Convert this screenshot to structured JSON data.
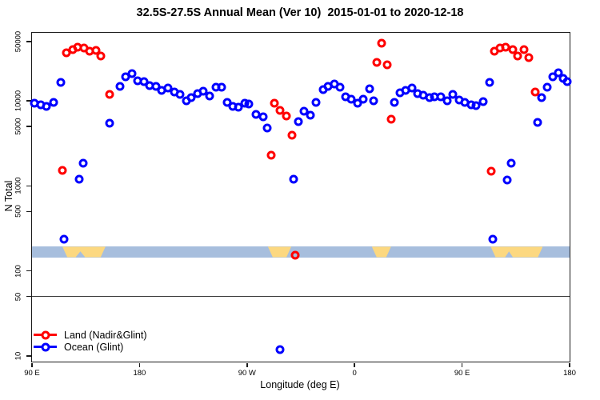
{
  "chart_data": {
    "type": "scatter",
    "title": "32.5S-27.5S Annual Mean (Ver 10)  2015-01-01 to 2020-12-18",
    "xlabel": "Longitude (deg E)",
    "ylabel": "N Total",
    "x_axis": {
      "range_deg": [
        0,
        450
      ],
      "tick_positions_deg": [
        0,
        90,
        180,
        270,
        360,
        450
      ],
      "tick_labels": [
        "90 E",
        "180",
        "90 W",
        "0",
        "90 E",
        "180"
      ]
    },
    "y_axis": {
      "scale": "log10",
      "range": [
        8.6,
        63000
      ],
      "tick_values": [
        10,
        50,
        100,
        500,
        1000,
        5000,
        10000,
        50000
      ],
      "tick_labels": [
        "10",
        "50",
        "100",
        "500",
        "1000",
        "5000",
        "10000",
        "50000"
      ]
    },
    "reference_line_value": 50,
    "band": {
      "value_range": [
        145,
        193
      ],
      "ocean_color": "#a7bedd",
      "land_color": "#fcd880",
      "land_patches_deg": [
        [
          25.5,
          61.5
        ],
        [
          197.5,
          217.0
        ],
        [
          284.5,
          300.5
        ],
        [
          384.0,
          427.5
        ]
      ],
      "ocean_notches_deg": [
        [
          36.5,
          44.5
        ],
        [
          396.0,
          402.5
        ]
      ]
    },
    "legend_position": "bottom-left",
    "series": [
      {
        "name": "Land (Nadir&Glint)",
        "color": "#ff0000",
        "points": [
          [
            25.6,
            1510
          ],
          [
            28.9,
            36800
          ],
          [
            33.9,
            40400
          ],
          [
            38.5,
            42500
          ],
          [
            43.6,
            41600
          ],
          [
            48.5,
            38100
          ],
          [
            53.4,
            39500
          ],
          [
            57.9,
            33700
          ],
          [
            64.8,
            11900
          ],
          [
            200.1,
            2280
          ],
          [
            202.8,
            9400
          ],
          [
            207.8,
            7800
          ],
          [
            213.0,
            6650
          ],
          [
            217.5,
            3950
          ],
          [
            220.3,
            153
          ],
          [
            288.6,
            28500
          ],
          [
            292.9,
            47400
          ],
          [
            297.6,
            26400
          ],
          [
            300.9,
            6100
          ],
          [
            384.4,
            1500
          ],
          [
            387.1,
            38100
          ],
          [
            391.5,
            41600
          ],
          [
            396.6,
            42500
          ],
          [
            402.2,
            40400
          ],
          [
            406.6,
            33500
          ],
          [
            411.5,
            40400
          ],
          [
            416.0,
            32400
          ],
          [
            421.5,
            12700
          ]
        ]
      },
      {
        "name": "Ocean (Glint)",
        "color": "#0000ff",
        "points": [
          [
            2.2,
            9300
          ],
          [
            7.3,
            9000
          ],
          [
            12.2,
            8560
          ],
          [
            17.8,
            9660
          ],
          [
            24.0,
            16600
          ],
          [
            26.7,
            234
          ],
          [
            39.6,
            1190
          ],
          [
            42.7,
            1840
          ],
          [
            65.2,
            5500
          ],
          [
            73.4,
            14700
          ],
          [
            78.3,
            19100
          ],
          [
            83.5,
            20800
          ],
          [
            88.3,
            17200
          ],
          [
            93.5,
            16900
          ],
          [
            98.6,
            15100
          ],
          [
            104.0,
            14900
          ],
          [
            108.6,
            13400
          ],
          [
            114.0,
            14100
          ],
          [
            119.3,
            12700
          ],
          [
            124.2,
            11900
          ],
          [
            129.1,
            10000
          ],
          [
            133.5,
            11000
          ],
          [
            138.4,
            12200
          ],
          [
            143.5,
            13100
          ],
          [
            148.7,
            11400
          ],
          [
            154.0,
            14400
          ],
          [
            158.9,
            14400
          ],
          [
            163.4,
            9650
          ],
          [
            167.8,
            8560
          ],
          [
            172.7,
            8380
          ],
          [
            177.8,
            9300
          ],
          [
            181.8,
            9170
          ],
          [
            187.8,
            6980
          ],
          [
            193.4,
            6500
          ],
          [
            197.2,
            4760
          ],
          [
            207.4,
            12
          ],
          [
            219.0,
            1210
          ],
          [
            222.8,
            5700
          ],
          [
            227.9,
            7500
          ],
          [
            233.0,
            6850
          ],
          [
            237.5,
            9650
          ],
          [
            243.5,
            13600
          ],
          [
            247.9,
            14900
          ],
          [
            252.8,
            15700
          ],
          [
            257.5,
            14400
          ],
          [
            262.4,
            11200
          ],
          [
            267.5,
            10500
          ],
          [
            272.4,
            9450
          ],
          [
            277.3,
            10400
          ],
          [
            282.4,
            13800
          ],
          [
            286.1,
            10000
          ],
          [
            303.2,
            9500
          ],
          [
            308.2,
            12500
          ],
          [
            312.8,
            13300
          ],
          [
            318.0,
            14100
          ],
          [
            322.9,
            12200
          ],
          [
            327.4,
            11600
          ],
          [
            332.5,
            11000
          ],
          [
            337.0,
            11200
          ],
          [
            342.0,
            11200
          ],
          [
            347.4,
            10000
          ],
          [
            352.5,
            11900
          ],
          [
            357.6,
            10200
          ],
          [
            362.5,
            9500
          ],
          [
            367.4,
            8900
          ],
          [
            371.9,
            8700
          ],
          [
            377.7,
            9800
          ],
          [
            383.0,
            16600
          ],
          [
            385.9,
            236
          ],
          [
            398.1,
            1170
          ],
          [
            400.8,
            1840
          ],
          [
            423.1,
            5600
          ],
          [
            426.6,
            11000
          ],
          [
            431.3,
            14400
          ],
          [
            436.0,
            19200
          ],
          [
            440.9,
            21400
          ],
          [
            444.9,
            18300
          ],
          [
            447.8,
            16900
          ]
        ]
      }
    ]
  }
}
